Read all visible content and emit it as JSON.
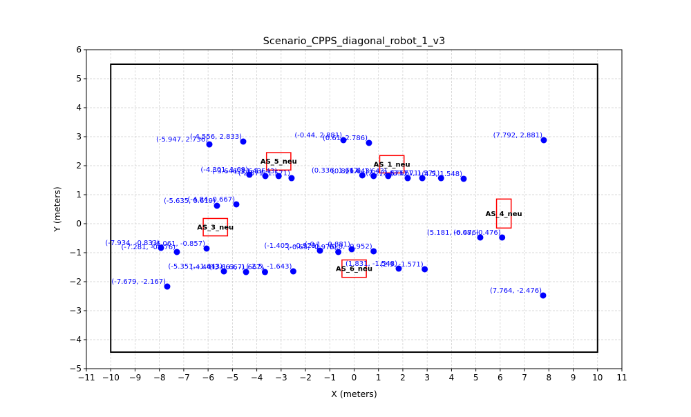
{
  "chart_data": {
    "type": "scatter",
    "title": "Scenario_CPPS_diagonal_robot_1_v3",
    "xlabel": "X (meters)",
    "ylabel": "Y (meters)",
    "xlim": [
      -11,
      11
    ],
    "ylim": [
      -5,
      6
    ],
    "x_ticks": [
      -11,
      -10,
      -9,
      -8,
      -7,
      -6,
      -5,
      -4,
      -3,
      -2,
      -1,
      0,
      1,
      2,
      3,
      4,
      5,
      6,
      7,
      8,
      9,
      10,
      11
    ],
    "y_ticks": [
      -5,
      -4,
      -3,
      -2,
      -1,
      0,
      1,
      2,
      3,
      4,
      5,
      6
    ],
    "grid": true,
    "colors": {
      "points": "#0000ff",
      "labels": "#0000ff",
      "stations": "#ff0000",
      "boundary": "#000000",
      "grid": "#cccccc"
    },
    "boundary": {
      "x": [
        -10,
        10
      ],
      "y": [
        -4.43,
        5.5
      ]
    },
    "stations": [
      {
        "name": "AS_1_neu",
        "x": [
          1.05,
          2.05
        ],
        "y": [
          1.75,
          2.35
        ]
      },
      {
        "name": "AS_3_neu",
        "x": [
          -6.2,
          -5.2
        ],
        "y": [
          -0.42,
          0.18
        ]
      },
      {
        "name": "AS_4_neu",
        "x": [
          5.85,
          6.45
        ],
        "y": [
          -0.15,
          0.85
        ]
      },
      {
        "name": "AS_5_neu",
        "x": [
          -3.6,
          -2.6
        ],
        "y": [
          1.85,
          2.45
        ]
      },
      {
        "name": "AS_6_neu",
        "x": [
          -0.5,
          0.5
        ],
        "y": [
          -1.85,
          -1.25
        ]
      }
    ],
    "points": [
      {
        "x": -5.947,
        "y": 2.736,
        "label": "(-5.947, 2.736)"
      },
      {
        "x": -4.556,
        "y": 2.833,
        "label": "(-4.556, 2.833)"
      },
      {
        "x": -0.44,
        "y": 2.881,
        "label": "(-0.44, 2.881)"
      },
      {
        "x": 0.61,
        "y": 2.786,
        "label": "(0.61, 2.786)"
      },
      {
        "x": 7.792,
        "y": 2.881,
        "label": "(7.792, 2.881)"
      },
      {
        "x": -4.301,
        "y": 1.69,
        "label": "(-4.301, 1.69)"
      },
      {
        "x": -3.646,
        "y": 1.643,
        "label": "(-3.646, 1.643)"
      },
      {
        "x": -3.1,
        "y": 1.643,
        "label": "(-3.1, 1.643)"
      },
      {
        "x": -2.571,
        "y": 1.571,
        "label": "(-2.571, 1.571)"
      },
      {
        "x": 0.336,
        "y": 1.667,
        "label": "(0.336, 1.667)"
      },
      {
        "x": 0.8,
        "y": 1.643,
        "label": "(0.8, 1.643)"
      },
      {
        "x": 1.4,
        "y": 1.643,
        "label": "(1.4, 1.643)"
      },
      {
        "x": 2.2,
        "y": 1.571,
        "label": "(2.2, 1.571)"
      },
      {
        "x": 2.8,
        "y": 1.571,
        "label": "(2.8, 1.571)"
      },
      {
        "x": 3.571,
        "y": 1.571,
        "label": "(3.571, 1.571)"
      },
      {
        "x": 4.5,
        "y": 1.548,
        "label": "(4.5, 1.548)"
      },
      {
        "x": -5.635,
        "y": 0.619,
        "label": "(-5.635, 0.619)"
      },
      {
        "x": -4.84,
        "y": 0.667,
        "label": "(-4.84, 0.667)"
      },
      {
        "x": -7.934,
        "y": -0.833,
        "label": "(-7.934, -0.833)"
      },
      {
        "x": -7.281,
        "y": -0.976,
        "label": "(-7.281, -0.976)"
      },
      {
        "x": -6.061,
        "y": -0.857,
        "label": "(-6.061, -0.857)"
      },
      {
        "x": -1.405,
        "y": -0.929,
        "label": "(-1.405, -0.929)"
      },
      {
        "x": -0.65,
        "y": -0.976,
        "label": "(-0.65, -0.976)"
      },
      {
        "x": -0.1,
        "y": -0.881,
        "label": "(-0.1, -0.881)"
      },
      {
        "x": 0.8,
        "y": -0.952,
        "label": "(0.8, -0.952)"
      },
      {
        "x": 5.181,
        "y": -0.476,
        "label": "(5.181, -0.476)"
      },
      {
        "x": 6.08,
        "y": -0.476,
        "label": "(6.08, -0.476)"
      },
      {
        "x": -5.351,
        "y": -1.643,
        "label": "(-5.351, -1.643)"
      },
      {
        "x": -4.441,
        "y": -1.667,
        "label": "(-4.441, -1.667)"
      },
      {
        "x": -3.663,
        "y": -1.667,
        "label": "(-3.663, -1.667)"
      },
      {
        "x": -2.5,
        "y": -1.643,
        "label": "(-2.5, -1.643)"
      },
      {
        "x": 1.831,
        "y": -1.548,
        "label": "(1.831, -1.548)"
      },
      {
        "x": 2.9,
        "y": -1.571,
        "label": "(2.9, -1.571)"
      },
      {
        "x": -7.679,
        "y": -2.167,
        "label": "(-7.679, -2.167)"
      },
      {
        "x": 7.764,
        "y": -2.476,
        "label": "(7.764, -2.476)"
      }
    ]
  }
}
